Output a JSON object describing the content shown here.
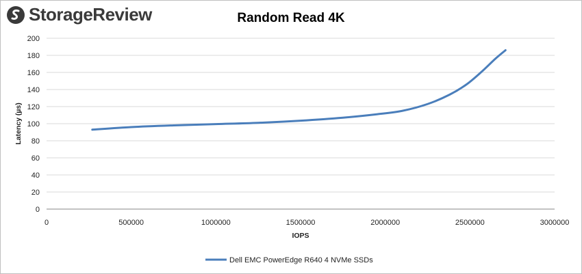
{
  "brand": {
    "name": "StorageReview"
  },
  "chart_data": {
    "type": "line",
    "title": "Random Read 4K",
    "xlabel": "IOPS",
    "ylabel": "Latency (µs)",
    "xlim": [
      0,
      3000000
    ],
    "ylim": [
      0,
      200
    ],
    "x_ticks": [
      "0",
      "500000",
      "1000000",
      "1500000",
      "2000000",
      "2500000",
      "3000000"
    ],
    "y_ticks": [
      "0",
      "20",
      "40",
      "60",
      "80",
      "100",
      "120",
      "140",
      "160",
      "180",
      "200"
    ],
    "grid": "horizontal",
    "legend_position": "bottom",
    "series": [
      {
        "name": "Dell EMC PowerEdge R640 4 NVMe SSDs",
        "color": "#4a7ebb",
        "x": [
          270000,
          500000,
          750000,
          1000000,
          1250000,
          1500000,
          1750000,
          1950000,
          2100000,
          2250000,
          2380000,
          2480000,
          2570000,
          2650000,
          2710000
        ],
        "y": [
          93,
          96,
          98,
          99.5,
          101,
          103.5,
          107,
          111,
          115,
          123,
          134,
          146,
          161,
          176,
          186
        ]
      }
    ]
  }
}
